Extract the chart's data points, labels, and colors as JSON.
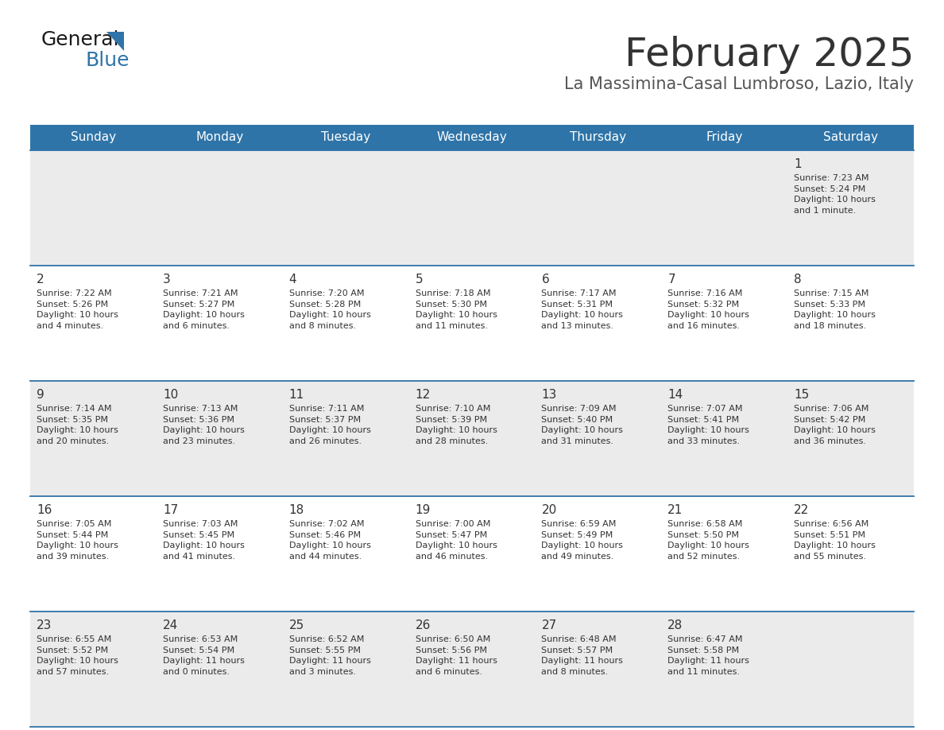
{
  "title": "February 2025",
  "subtitle": "La Massimina-Casal Lumbroso, Lazio, Italy",
  "days_of_week": [
    "Sunday",
    "Monday",
    "Tuesday",
    "Wednesday",
    "Thursday",
    "Friday",
    "Saturday"
  ],
  "header_bg": "#2E74A8",
  "header_text": "#FFFFFF",
  "row0_bg": "#EBEBEB",
  "row1_bg": "#FFFFFF",
  "row2_bg": "#EBEBEB",
  "row3_bg": "#FFFFFF",
  "row4_bg": "#EBEBEB",
  "cell_text": "#333333",
  "title_color": "#333333",
  "subtitle_color": "#555555",
  "divider_color": "#2E74A8",
  "calendar_data": [
    [
      {
        "day": null,
        "info": null
      },
      {
        "day": null,
        "info": null
      },
      {
        "day": null,
        "info": null
      },
      {
        "day": null,
        "info": null
      },
      {
        "day": null,
        "info": null
      },
      {
        "day": null,
        "info": null
      },
      {
        "day": 1,
        "info": "Sunrise: 7:23 AM\nSunset: 5:24 PM\nDaylight: 10 hours\nand 1 minute."
      }
    ],
    [
      {
        "day": 2,
        "info": "Sunrise: 7:22 AM\nSunset: 5:26 PM\nDaylight: 10 hours\nand 4 minutes."
      },
      {
        "day": 3,
        "info": "Sunrise: 7:21 AM\nSunset: 5:27 PM\nDaylight: 10 hours\nand 6 minutes."
      },
      {
        "day": 4,
        "info": "Sunrise: 7:20 AM\nSunset: 5:28 PM\nDaylight: 10 hours\nand 8 minutes."
      },
      {
        "day": 5,
        "info": "Sunrise: 7:18 AM\nSunset: 5:30 PM\nDaylight: 10 hours\nand 11 minutes."
      },
      {
        "day": 6,
        "info": "Sunrise: 7:17 AM\nSunset: 5:31 PM\nDaylight: 10 hours\nand 13 minutes."
      },
      {
        "day": 7,
        "info": "Sunrise: 7:16 AM\nSunset: 5:32 PM\nDaylight: 10 hours\nand 16 minutes."
      },
      {
        "day": 8,
        "info": "Sunrise: 7:15 AM\nSunset: 5:33 PM\nDaylight: 10 hours\nand 18 minutes."
      }
    ],
    [
      {
        "day": 9,
        "info": "Sunrise: 7:14 AM\nSunset: 5:35 PM\nDaylight: 10 hours\nand 20 minutes."
      },
      {
        "day": 10,
        "info": "Sunrise: 7:13 AM\nSunset: 5:36 PM\nDaylight: 10 hours\nand 23 minutes."
      },
      {
        "day": 11,
        "info": "Sunrise: 7:11 AM\nSunset: 5:37 PM\nDaylight: 10 hours\nand 26 minutes."
      },
      {
        "day": 12,
        "info": "Sunrise: 7:10 AM\nSunset: 5:39 PM\nDaylight: 10 hours\nand 28 minutes."
      },
      {
        "day": 13,
        "info": "Sunrise: 7:09 AM\nSunset: 5:40 PM\nDaylight: 10 hours\nand 31 minutes."
      },
      {
        "day": 14,
        "info": "Sunrise: 7:07 AM\nSunset: 5:41 PM\nDaylight: 10 hours\nand 33 minutes."
      },
      {
        "day": 15,
        "info": "Sunrise: 7:06 AM\nSunset: 5:42 PM\nDaylight: 10 hours\nand 36 minutes."
      }
    ],
    [
      {
        "day": 16,
        "info": "Sunrise: 7:05 AM\nSunset: 5:44 PM\nDaylight: 10 hours\nand 39 minutes."
      },
      {
        "day": 17,
        "info": "Sunrise: 7:03 AM\nSunset: 5:45 PM\nDaylight: 10 hours\nand 41 minutes."
      },
      {
        "day": 18,
        "info": "Sunrise: 7:02 AM\nSunset: 5:46 PM\nDaylight: 10 hours\nand 44 minutes."
      },
      {
        "day": 19,
        "info": "Sunrise: 7:00 AM\nSunset: 5:47 PM\nDaylight: 10 hours\nand 46 minutes."
      },
      {
        "day": 20,
        "info": "Sunrise: 6:59 AM\nSunset: 5:49 PM\nDaylight: 10 hours\nand 49 minutes."
      },
      {
        "day": 21,
        "info": "Sunrise: 6:58 AM\nSunset: 5:50 PM\nDaylight: 10 hours\nand 52 minutes."
      },
      {
        "day": 22,
        "info": "Sunrise: 6:56 AM\nSunset: 5:51 PM\nDaylight: 10 hours\nand 55 minutes."
      }
    ],
    [
      {
        "day": 23,
        "info": "Sunrise: 6:55 AM\nSunset: 5:52 PM\nDaylight: 10 hours\nand 57 minutes."
      },
      {
        "day": 24,
        "info": "Sunrise: 6:53 AM\nSunset: 5:54 PM\nDaylight: 11 hours\nand 0 minutes."
      },
      {
        "day": 25,
        "info": "Sunrise: 6:52 AM\nSunset: 5:55 PM\nDaylight: 11 hours\nand 3 minutes."
      },
      {
        "day": 26,
        "info": "Sunrise: 6:50 AM\nSunset: 5:56 PM\nDaylight: 11 hours\nand 6 minutes."
      },
      {
        "day": 27,
        "info": "Sunrise: 6:48 AM\nSunset: 5:57 PM\nDaylight: 11 hours\nand 8 minutes."
      },
      {
        "day": 28,
        "info": "Sunrise: 6:47 AM\nSunset: 5:58 PM\nDaylight: 11 hours\nand 11 minutes."
      },
      {
        "day": null,
        "info": null
      }
    ]
  ]
}
